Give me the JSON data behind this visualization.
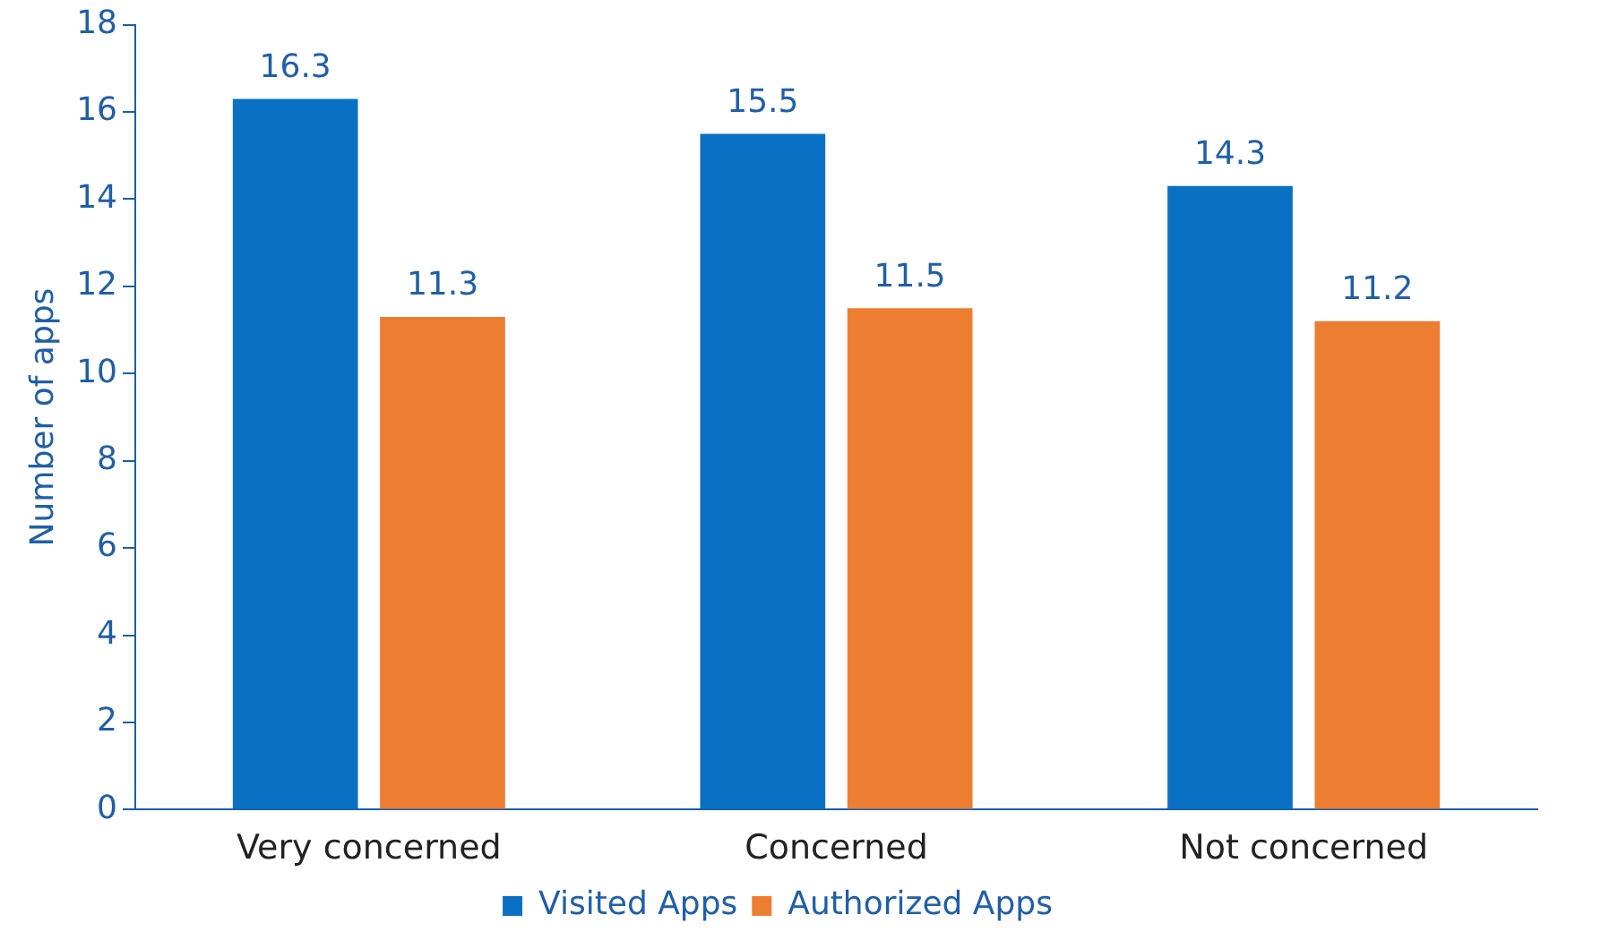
{
  "chart_data": {
    "type": "bar",
    "ylabel": "Number of apps",
    "categories": [
      "Very concerned",
      "Concerned",
      "Not concerned"
    ],
    "series": [
      {
        "name": "Visited Apps",
        "color": "#0a70c4",
        "values": [
          16.3,
          15.5,
          14.3
        ]
      },
      {
        "name": "Authorized Apps",
        "color": "#ed7d31",
        "values": [
          11.3,
          11.5,
          11.2
        ]
      }
    ],
    "ylim": [
      0,
      18
    ],
    "yticks": [
      0,
      2,
      4,
      6,
      8,
      10,
      12,
      14,
      16,
      18
    ],
    "grid": false,
    "legend": "bottom",
    "data_labels": true
  }
}
